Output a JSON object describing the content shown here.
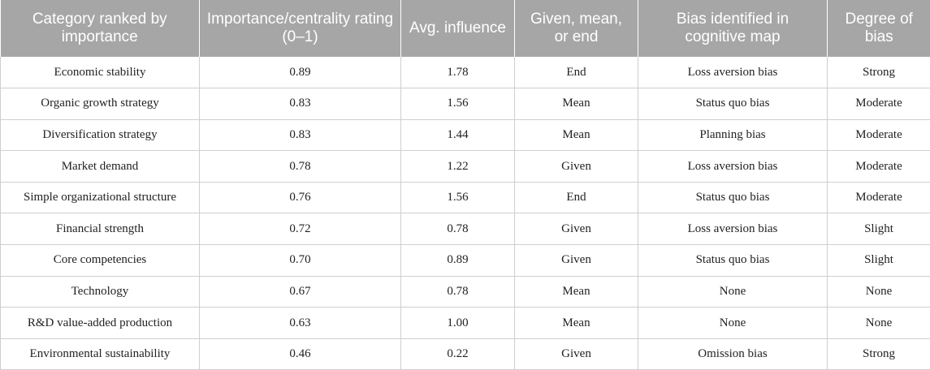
{
  "table": {
    "headers": [
      "Category ranked by importance",
      "Importance/centrality rating (0–1)",
      "Avg. influence",
      "Given, mean, or end",
      "Bias identified in cognitive map",
      "Degree of bias"
    ],
    "rows": [
      [
        "Economic stability",
        "0.89",
        "1.78",
        "End",
        "Loss aversion bias",
        "Strong"
      ],
      [
        "Organic growth strategy",
        "0.83",
        "1.56",
        "Mean",
        "Status quo bias",
        "Moderate"
      ],
      [
        "Diversification strategy",
        "0.83",
        "1.44",
        "Mean",
        "Planning bias",
        "Moderate"
      ],
      [
        "Market demand",
        "0.78",
        "1.22",
        "Given",
        "Loss aversion bias",
        "Moderate"
      ],
      [
        "Simple organizational structure",
        "0.76",
        "1.56",
        "End",
        "Status quo bias",
        "Moderate"
      ],
      [
        "Financial strength",
        "0.72",
        "0.78",
        "Given",
        "Loss aversion bias",
        "Slight"
      ],
      [
        "Core competencies",
        "0.70",
        "0.89",
        "Given",
        "Status quo bias",
        "Slight"
      ],
      [
        "Technology",
        "0.67",
        "0.78",
        "Mean",
        "None",
        "None"
      ],
      [
        "R&D value-added production",
        "0.63",
        "1.00",
        "Mean",
        "None",
        "None"
      ],
      [
        "Environmental sustainability",
        "0.46",
        "0.22",
        "Given",
        "Omission bias",
        "Strong"
      ]
    ]
  }
}
